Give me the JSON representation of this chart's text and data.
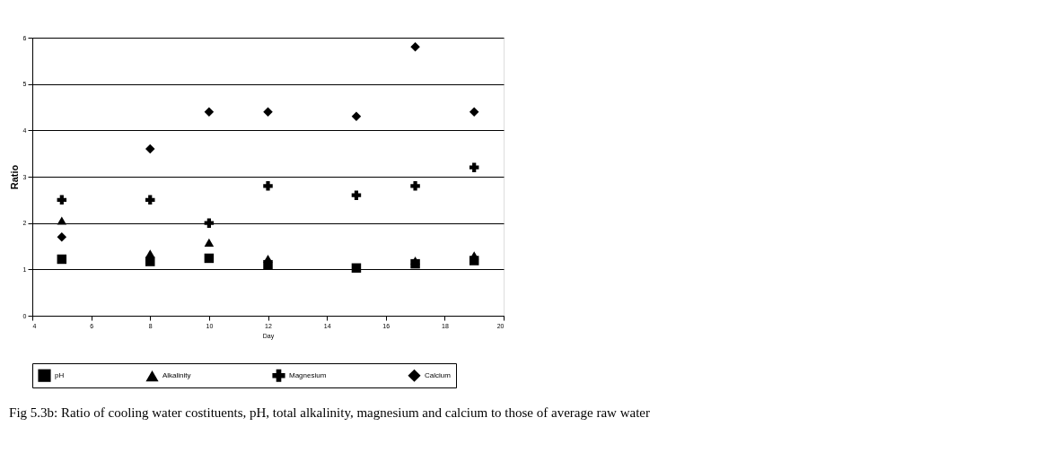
{
  "chart_data": {
    "type": "scatter",
    "xlabel": "Day",
    "ylabel": "Ratio",
    "x": [
      5,
      8,
      10,
      12,
      15,
      17,
      19
    ],
    "series": [
      {
        "name": "pH",
        "color": "#000000",
        "marker": "square",
        "values": [
          1.22,
          1.17,
          1.24,
          1.1,
          1.03,
          1.12,
          1.19
        ]
      },
      {
        "name": "Alkalinity",
        "color": "#000000",
        "marker": "triangle",
        "values": [
          2.05,
          1.34,
          1.58,
          1.23,
          null,
          1.19,
          1.3
        ]
      },
      {
        "name": "Magnesium",
        "color": "#000000",
        "marker": "cross",
        "values": [
          2.5,
          2.5,
          2.0,
          2.8,
          2.6,
          2.8,
          3.2
        ]
      },
      {
        "name": "Calcium",
        "color": "#000000",
        "marker": "diamond",
        "values": [
          1.7,
          3.6,
          4.4,
          4.4,
          4.3,
          5.8,
          4.4
        ]
      }
    ],
    "xlim": [
      4,
      20
    ],
    "xticks": [
      4,
      6,
      8,
      10,
      12,
      14,
      16,
      18,
      20
    ],
    "ylim": [
      0,
      6
    ],
    "yticks": [
      0,
      1,
      2,
      3,
      4,
      5,
      6
    ],
    "grid": "y",
    "legend": "bottom",
    "annotations": [
      "Fig 5.3b: Ratio of cooling water costituents, pH, total alkalinity, magnesium and calcium to those of average raw water"
    ]
  }
}
